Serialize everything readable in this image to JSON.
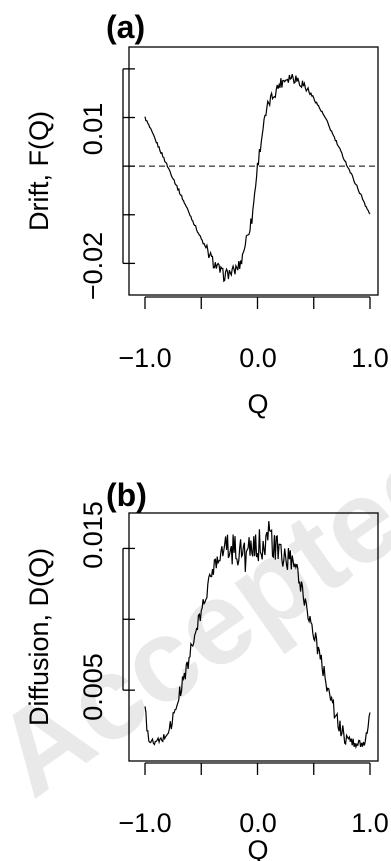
{
  "watermark": "Accepted manuscript",
  "chart_data": [
    {
      "type": "line",
      "panel_label": "(a)",
      "xlabel": "Q",
      "ylabel": "Drift, F(Q)",
      "xlim": [
        -1.0,
        1.0
      ],
      "ylim": [
        -0.0265,
        0.0245
      ],
      "x_ticks": [
        -1.0,
        -0.5,
        0.0,
        0.5,
        1.0
      ],
      "x_tick_labels": [
        "−1.0",
        "",
        "0.0",
        "",
        "1.0"
      ],
      "y_ticks": [
        -0.02,
        -0.01,
        0.0,
        0.01,
        0.02
      ],
      "y_tick_labels": [
        "−0.02",
        "",
        "",
        "0.01",
        ""
      ],
      "reference_line": {
        "y": 0.0,
        "style": "dashed"
      },
      "grid": false,
      "series": [
        {
          "values_x": [
            -1.0,
            -0.9,
            -0.8,
            -0.7,
            -0.6,
            -0.5,
            -0.4,
            -0.35,
            -0.3,
            -0.25,
            -0.2,
            -0.15,
            -0.1,
            -0.05,
            0.0,
            0.05,
            0.1,
            0.15,
            0.2,
            0.25,
            0.3,
            0.35,
            0.4,
            0.5,
            0.6,
            0.7,
            0.8,
            0.9,
            1.0
          ],
          "values_y": [
            0.01,
            0.005,
            0.0,
            -0.005,
            -0.01,
            -0.015,
            -0.0195,
            -0.021,
            -0.0225,
            -0.022,
            -0.0215,
            -0.02,
            -0.015,
            -0.011,
            0.0,
            0.008,
            0.013,
            0.015,
            0.017,
            0.018,
            0.0185,
            0.018,
            0.017,
            0.014,
            0.01,
            0.005,
            0.0,
            -0.005,
            -0.01
          ]
        }
      ]
    },
    {
      "type": "line",
      "panel_label": "(b)",
      "xlabel": "Q",
      "ylabel": "Diffusion, D(Q)",
      "xlim": [
        -1.0,
        1.0
      ],
      "ylim": [
        0.0,
        0.0175
      ],
      "x_ticks": [
        -1.0,
        -0.5,
        0.0,
        0.5,
        1.0
      ],
      "x_tick_labels": [
        "−1.0",
        "",
        "0.0",
        "",
        "1.0"
      ],
      "y_ticks": [
        0.005,
        0.01,
        0.015
      ],
      "y_tick_labels": [
        "0.005",
        "",
        "0.015"
      ],
      "grid": false,
      "series": [
        {
          "values_x": [
            -1.0,
            -0.98,
            -0.95,
            -0.9,
            -0.85,
            -0.8,
            -0.75,
            -0.7,
            -0.6,
            -0.5,
            -0.45,
            -0.4,
            -0.35,
            -0.3,
            -0.2,
            -0.1,
            0.0,
            0.1,
            0.15,
            0.2,
            0.3,
            0.35,
            0.4,
            0.5,
            0.6,
            0.7,
            0.75,
            0.8,
            0.85,
            0.9,
            0.95,
            0.98,
            1.0
          ],
          "values_y": [
            0.004,
            0.002,
            0.0013,
            0.0013,
            0.0015,
            0.002,
            0.003,
            0.0045,
            0.0075,
            0.0105,
            0.012,
            0.0135,
            0.0145,
            0.015,
            0.015,
            0.0145,
            0.015,
            0.016,
            0.015,
            0.0145,
            0.014,
            0.0135,
            0.012,
            0.009,
            0.006,
            0.003,
            0.002,
            0.0015,
            0.0013,
            0.0012,
            0.0013,
            0.002,
            0.0035
          ]
        }
      ]
    }
  ]
}
